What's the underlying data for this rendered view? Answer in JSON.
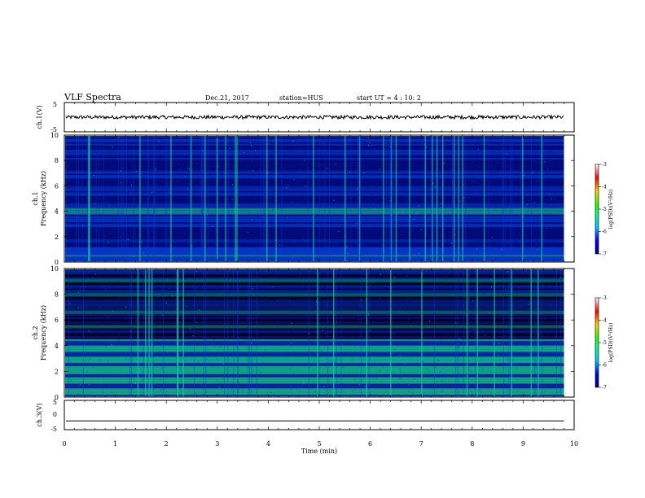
{
  "header": {
    "title": "VLF Spectra",
    "date": "Dec.21, 2017",
    "station": "station=HUS",
    "start": "start UT =  4 : 10: 2"
  },
  "chart_data": [
    {
      "type": "line",
      "name": "ch1-waveform",
      "ylabel": "ch.1(V)",
      "ylim": [
        -5,
        5
      ],
      "yticks": [
        "5",
        "-5"
      ],
      "x_range": [
        0,
        9.8
      ],
      "baseline": 0,
      "amplitude": 0.6
    },
    {
      "type": "heatmap",
      "name": "ch1-spectrogram",
      "ylabel_line1": "ch.1",
      "ylabel_line2": "Frequency (kHz)",
      "ylim": [
        0,
        10
      ],
      "yticks": [
        "0",
        "2",
        "4",
        "6",
        "8",
        "10"
      ],
      "x_range": [
        0,
        9.8
      ],
      "colorbar": {
        "label": "log(PSD)(V²/Hz)",
        "range": [
          -7,
          -3
        ],
        "ticks": [
          "-3",
          "-4",
          "-5",
          "-6",
          "-7"
        ]
      }
    },
    {
      "type": "heatmap",
      "name": "ch2-spectrogram",
      "ylabel_line1": "ch.2",
      "ylabel_line2": "Frequency (kHz)",
      "ylim": [
        0,
        10
      ],
      "yticks": [
        "0",
        "2",
        "4",
        "6",
        "8",
        "10"
      ],
      "x_range": [
        0,
        9.8
      ],
      "colorbar": {
        "label": "log(PSD)(V²/Hz)",
        "range": [
          -7,
          -3
        ],
        "ticks": [
          "-3",
          "-4",
          "-5",
          "-6",
          "-7"
        ]
      }
    },
    {
      "type": "line",
      "name": "ch3-waveform",
      "ylabel": "ch.3(V)",
      "ylim": [
        -5,
        5
      ],
      "yticks": [
        "5",
        "0",
        "-5"
      ],
      "x_range": [
        0,
        9.8
      ],
      "baseline": -2
    }
  ],
  "xaxis": {
    "label": "Time (min)",
    "xlim": [
      0,
      10
    ],
    "ticks": [
      "0",
      "1",
      "2",
      "3",
      "4",
      "5",
      "6",
      "7",
      "8",
      "9",
      "10"
    ]
  },
  "colors": {
    "background": "#000030",
    "low": "#000a78",
    "mid": "#0a3cd2",
    "high": "#14c8a0",
    "line": "#000000"
  }
}
